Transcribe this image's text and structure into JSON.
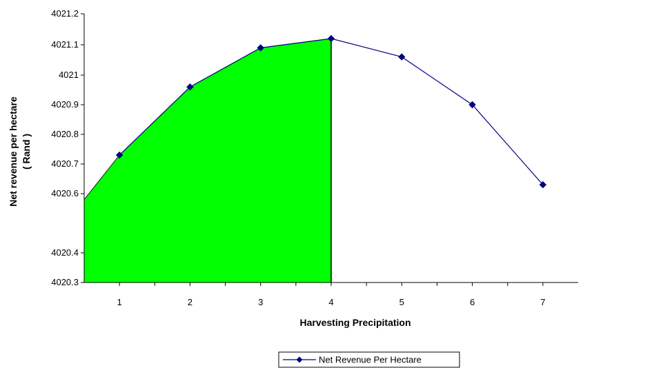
{
  "chart_data": {
    "type": "line",
    "x": [
      0.5,
      1,
      2,
      3,
      4,
      5,
      6,
      7
    ],
    "marker_x": [
      1,
      2,
      3,
      4,
      5,
      6,
      7
    ],
    "series": [
      {
        "name": "Net Revenue Per Hectare",
        "x": [
          1,
          2,
          3,
          4,
          5,
          6,
          7
        ],
        "values": [
          4020.73,
          4020.96,
          4021.09,
          4021.12,
          4021.06,
          4020.9,
          4020.63
        ],
        "color": "#000080"
      }
    ],
    "area": {
      "x": [
        0.5,
        1,
        2,
        3,
        4
      ],
      "values": [
        4020.58,
        4020.73,
        4020.96,
        4021.09,
        4021.12
      ],
      "fill": "#00ff00"
    },
    "title": "",
    "xlabel": "Harvesting Precipitation",
    "ylabel_lines": [
      "Net revenue per hectare",
      "( Rand )"
    ],
    "xlim": [
      0.5,
      7.5
    ],
    "ylim": [
      4020.3,
      4021.2
    ],
    "xticks": [
      1,
      2,
      3,
      4,
      5,
      6,
      7
    ],
    "xtick_labels": [
      "1",
      "2",
      "3",
      "4",
      "5",
      "6",
      "7"
    ],
    "yticks": [
      4020.3,
      4020.4,
      4020.6,
      4020.7,
      4020.8,
      4020.9,
      4021,
      4021.1,
      4021.2
    ],
    "ytick_labels": [
      "4020.3",
      "4020.4",
      "4020.6",
      "4020.7",
      "4020.8",
      "4020.9",
      "4021",
      "4021.1",
      "4021.2"
    ],
    "grid": false,
    "legend": {
      "position": "bottom-center",
      "label": "Net Revenue Per Hectare"
    }
  }
}
